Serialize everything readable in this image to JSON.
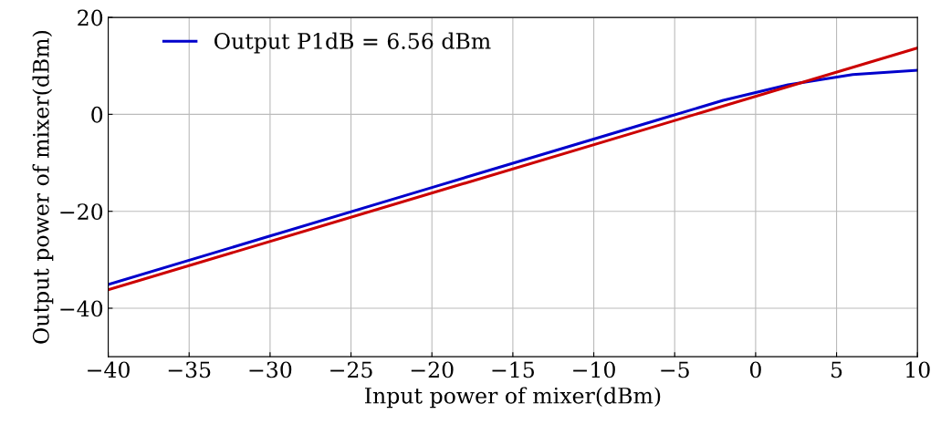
{
  "chart_data": {
    "type": "line",
    "xlabel": "Input power of mixer(dBm)",
    "ylabel": "Output power of mixer(dBm)",
    "xlim": [
      -40,
      10
    ],
    "ylim": [
      -50,
      20
    ],
    "xticks": [
      {
        "value": -40,
        "label": "−40"
      },
      {
        "value": -35,
        "label": "−35"
      },
      {
        "value": -30,
        "label": "−30"
      },
      {
        "value": -25,
        "label": "−25"
      },
      {
        "value": -20,
        "label": "−20"
      },
      {
        "value": -15,
        "label": "−15"
      },
      {
        "value": -10,
        "label": "−10"
      },
      {
        "value": -5,
        "label": "−5"
      },
      0,
      5,
      10
    ],
    "yticks": [
      {
        "value": -40,
        "label": "−40"
      },
      {
        "value": -20,
        "label": "−20"
      },
      0,
      20
    ],
    "grid": true,
    "legend": "top left",
    "marker": "none",
    "line_style": "solid",
    "series": [
      {
        "name": "Output P1dB = 6.56 dBm",
        "color": "#0000cc",
        "x": [
          -40,
          -30,
          -20,
          -10,
          -6,
          -2,
          2,
          6,
          10
        ],
        "values": [
          -35.1,
          -25.1,
          -15.1,
          -5.1,
          -1.1,
          2.9,
          6.1,
          8.2,
          9.1
        ]
      },
      {
        "color": "#cc0000",
        "x": [
          -40,
          10
        ],
        "values": [
          -36.2,
          13.7
        ]
      }
    ]
  }
}
